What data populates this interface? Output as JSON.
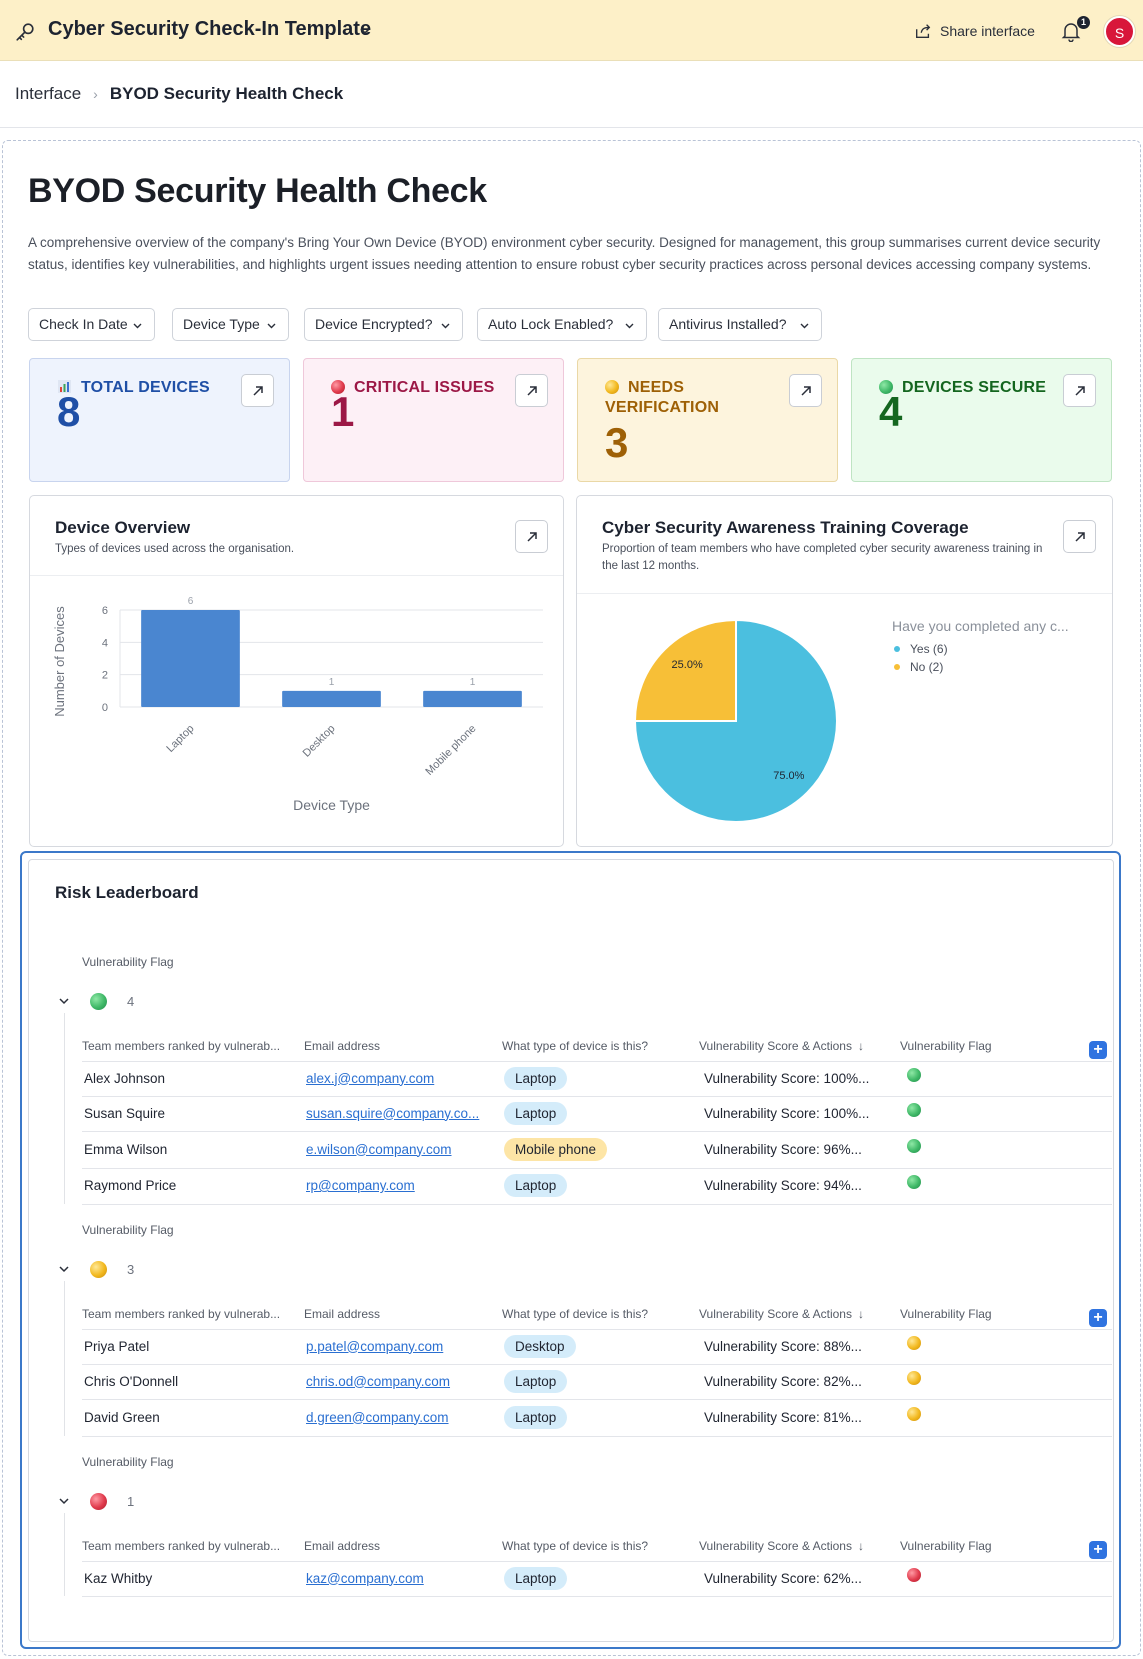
{
  "topbar": {
    "title": "Cyber Security Check-In Template",
    "share_label": "Share interface",
    "notification_count": "1",
    "avatar_initial": "S",
    "background_color": "#fdf0c8"
  },
  "breadcrumb": {
    "root": "Interface",
    "current": "BYOD Security Health Check"
  },
  "page": {
    "title": "BYOD Security Health Check",
    "description": "A comprehensive overview of the company's Bring Your Own Device (BYOD) environment cyber security. Designed for management, this group summarises current device security status, identifies key vulnerabilities, and highlights urgent issues needing attention to ensure robust cyber security practices across personal devices accessing company systems."
  },
  "filters": [
    "Check In Date",
    "Device Type",
    "Device Encrypted?",
    "Auto Lock Enabled?",
    "Antivirus Installed?"
  ],
  "kpis": {
    "total": {
      "label": "TOTAL DEVICES",
      "value": "8",
      "icon": "bar-chart-icon",
      "color": "#1f4fa6"
    },
    "critical": {
      "label": "CRITICAL ISSUES",
      "value": "1",
      "icon": "red-circle-icon",
      "color": "#9c1846"
    },
    "warn": {
      "label": "NEEDS VERIFICATION",
      "value": "3",
      "icon": "yellow-circle-icon",
      "color": "#9e6006"
    },
    "secure": {
      "label": "DEVICES SECURE",
      "value": "4",
      "icon": "green-circle-icon",
      "color": "#14661f"
    }
  },
  "device_overview": {
    "title": "Device Overview",
    "subtitle": "Types of devices used across the organisation."
  },
  "awareness": {
    "title": "Cyber Security Awareness Training Coverage",
    "subtitle": "Proportion of team members who have completed cyber security awareness training in the last 12 months."
  },
  "chart_data": [
    {
      "type": "bar",
      "categories": [
        "Laptop",
        "Desktop",
        "Mobile phone"
      ],
      "values": [
        6,
        1,
        1
      ],
      "xlabel": "Device Type",
      "ylabel": "Number of Devices",
      "ylim": [
        0,
        6
      ],
      "yticks": [
        0,
        2,
        4,
        6
      ],
      "grid": true,
      "color": "#4a86d0"
    },
    {
      "type": "pie",
      "legend_title": "Have you completed any c...",
      "legend_position": "right",
      "slices": [
        {
          "label": "Yes",
          "legend": "Yes (6)",
          "value": 6,
          "percent_label": "75.0%",
          "color": "#4bbfdf"
        },
        {
          "label": "No",
          "legend": "No (2)",
          "value": 2,
          "percent_label": "25.0%",
          "color": "#f7bf37"
        }
      ]
    }
  ],
  "leaderboard": {
    "title": "Risk Leaderboard",
    "group_field": "Vulnerability Flag",
    "columns": [
      "Team members ranked by vulnerab...",
      "Email address",
      "What type of device is this?",
      "Vulnerability Score & Actions",
      "Vulnerability Flag"
    ],
    "groups": [
      {
        "flag": "green",
        "count": "4",
        "rows": [
          {
            "name": "Alex Johnson",
            "email": "alex.j@company.com",
            "device": "Laptop",
            "score": "Vulnerability Score: 100%..."
          },
          {
            "name": "Susan Squire",
            "email": "susan.squire@company.co...",
            "device": "Laptop",
            "score": "Vulnerability Score: 100%..."
          },
          {
            "name": "Emma Wilson",
            "email": "e.wilson@company.com",
            "device": "Mobile phone",
            "score": "Vulnerability Score: 96%..."
          },
          {
            "name": "Raymond Price",
            "email": "rp@company.com",
            "device": "Laptop",
            "score": "Vulnerability Score: 94%..."
          }
        ]
      },
      {
        "flag": "yellow",
        "count": "3",
        "rows": [
          {
            "name": "Priya Patel",
            "email": "p.patel@company.com",
            "device": "Desktop",
            "score": "Vulnerability Score: 88%..."
          },
          {
            "name": "Chris O'Donnell",
            "email": "chris.od@company.com",
            "device": "Laptop",
            "score": "Vulnerability Score: 82%..."
          },
          {
            "name": "David Green",
            "email": "d.green@company.com",
            "device": "Laptop",
            "score": "Vulnerability Score: 81%..."
          }
        ]
      },
      {
        "flag": "red",
        "count": "1",
        "rows": [
          {
            "name": "Kaz Whitby",
            "email": "kaz@company.com",
            "device": "Laptop",
            "score": "Vulnerability Score: 62%..."
          }
        ]
      }
    ]
  }
}
